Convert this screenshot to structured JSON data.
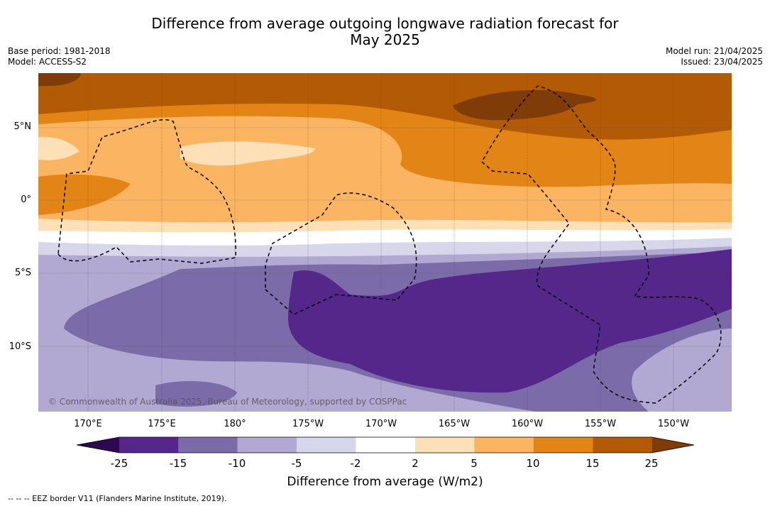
{
  "header": {
    "title_line1": "Difference from average outgoing longwave radiation forecast for",
    "title_line2": "May 2025",
    "base_period": "Base period: 1981-2018",
    "model": "Model: ACCESS-S2",
    "model_run": "Model run: 21/04/2025",
    "issued": "Issued: 23/04/2025"
  },
  "map": {
    "lat_labels": [
      "5°N",
      "0°",
      "5°S",
      "10°S"
    ],
    "lon_labels": [
      "170°E",
      "175°E",
      "180°",
      "175°W",
      "170°W",
      "165°W",
      "160°W",
      "155°W",
      "150°W"
    ],
    "copyright": "© Commonwealth of Australia 2025, Bureau of Meteorology, supported by COSPPac"
  },
  "colorbar": {
    "ticks": [
      "-25",
      "-15",
      "-10",
      "-5",
      "-2",
      "2",
      "5",
      "10",
      "15",
      "25"
    ],
    "colors": [
      "#2d0a50",
      "#55278b",
      "#7c6ba9",
      "#b1a9d2",
      "#d7d6ea",
      "#ffffff",
      "#fde0b6",
      "#fbb461",
      "#e38416",
      "#b35a06",
      "#7f3b08"
    ],
    "title": "Difference from average (W/m2)"
  },
  "legend": {
    "eez_note": "--  --  -- EEZ border V11 (Flanders Marine Institute, 2019)."
  }
}
